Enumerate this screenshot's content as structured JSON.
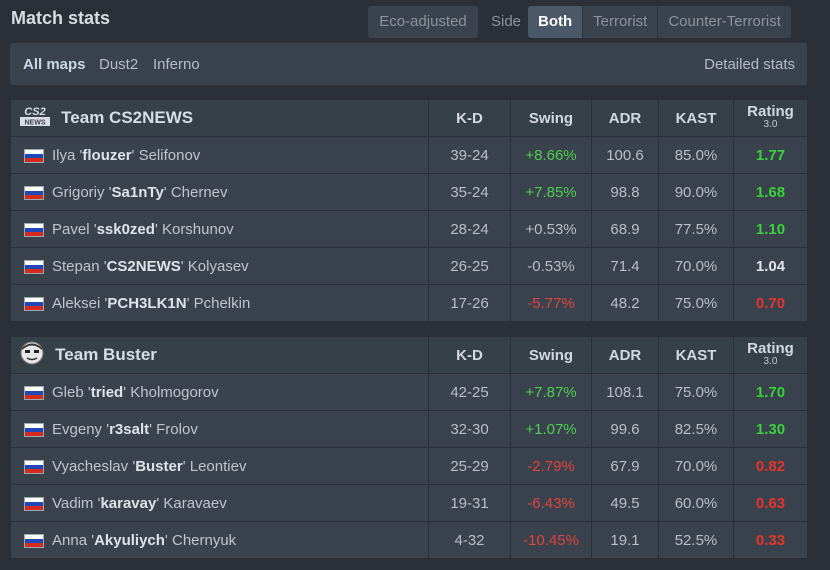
{
  "header": {
    "title": "Match stats",
    "eco_label": "Eco-adjusted",
    "side_label": "Side",
    "side_options": [
      "Both",
      "Terrorist",
      "Counter-Terrorist"
    ],
    "selected_side": "Both"
  },
  "maps": {
    "items": [
      "All maps",
      "Dust2",
      "Inferno"
    ],
    "selected": "All maps",
    "detailed_label": "Detailed stats"
  },
  "columns": {
    "kd": "K-D",
    "swing": "Swing",
    "adr": "ADR",
    "kast": "KAST",
    "rating": "Rating",
    "rating_version": "3.0"
  },
  "colors": {
    "positive": "#4fcf4f",
    "negative": "#e0443a",
    "rating_good": "#38d33a",
    "rating_bad": "#e8352b"
  },
  "teams": [
    {
      "name": "Team CS2NEWS",
      "logo_icon": "cs2news-logo-icon",
      "players": [
        {
          "first": "Ilya",
          "nick": "flouzer",
          "last": "Selifonov",
          "kd": "39-24",
          "swing": "+8.66%",
          "adr": "100.6",
          "kast": "85.0%",
          "rating": "1.77",
          "swing_class": "pos",
          "rating_class": "rp"
        },
        {
          "first": "Grigoriy",
          "nick": "Sa1nTy",
          "last": "Chernev",
          "kd": "35-24",
          "swing": "+7.85%",
          "adr": "98.8",
          "kast": "90.0%",
          "rating": "1.68",
          "swing_class": "pos",
          "rating_class": "rp"
        },
        {
          "first": "Pavel",
          "nick": "ssk0zed",
          "last": "Korshunov",
          "kd": "28-24",
          "swing": "+0.53%",
          "adr": "68.9",
          "kast": "77.5%",
          "rating": "1.10",
          "swing_class": "neu",
          "rating_class": "rp"
        },
        {
          "first": "Stepan",
          "nick": "CS2NEWS",
          "last": "Kolyasev",
          "kd": "26-25",
          "swing": "-0.53%",
          "adr": "71.4",
          "kast": "70.0%",
          "rating": "1.04",
          "swing_class": "neu",
          "rating_class": "rz"
        },
        {
          "first": "Aleksei",
          "nick": "PCH3LK1N",
          "last": "Pchelkin",
          "kd": "17-26",
          "swing": "-5.77%",
          "adr": "48.2",
          "kast": "75.0%",
          "rating": "0.70",
          "swing_class": "neg",
          "rating_class": "rn"
        }
      ]
    },
    {
      "name": "Team Buster",
      "logo_icon": "buster-logo-icon",
      "players": [
        {
          "first": "Gleb",
          "nick": "tried",
          "last": "Kholmogorov",
          "kd": "42-25",
          "swing": "+7.87%",
          "adr": "108.1",
          "kast": "75.0%",
          "rating": "1.70",
          "swing_class": "pos",
          "rating_class": "rp"
        },
        {
          "first": "Evgeny",
          "nick": "r3salt",
          "last": "Frolov",
          "kd": "32-30",
          "swing": "+1.07%",
          "adr": "99.6",
          "kast": "82.5%",
          "rating": "1.30",
          "swing_class": "pos",
          "rating_class": "rp"
        },
        {
          "first": "Vyacheslav",
          "nick": "Buster",
          "last": "Leontiev",
          "kd": "25-29",
          "swing": "-2.79%",
          "adr": "67.9",
          "kast": "70.0%",
          "rating": "0.82",
          "swing_class": "neg",
          "rating_class": "rn"
        },
        {
          "first": "Vadim",
          "nick": "karavay",
          "last": "Karavaev",
          "kd": "19-31",
          "swing": "-6.43%",
          "adr": "49.5",
          "kast": "60.0%",
          "rating": "0.63",
          "swing_class": "neg",
          "rating_class": "rn"
        },
        {
          "first": "Anna",
          "nick": "Akyuliych",
          "last": "Chernyuk",
          "kd": "4-32",
          "swing": "-10.45%",
          "adr": "19.1",
          "kast": "52.5%",
          "rating": "0.33",
          "swing_class": "neg",
          "rating_class": "rn"
        }
      ]
    }
  ]
}
